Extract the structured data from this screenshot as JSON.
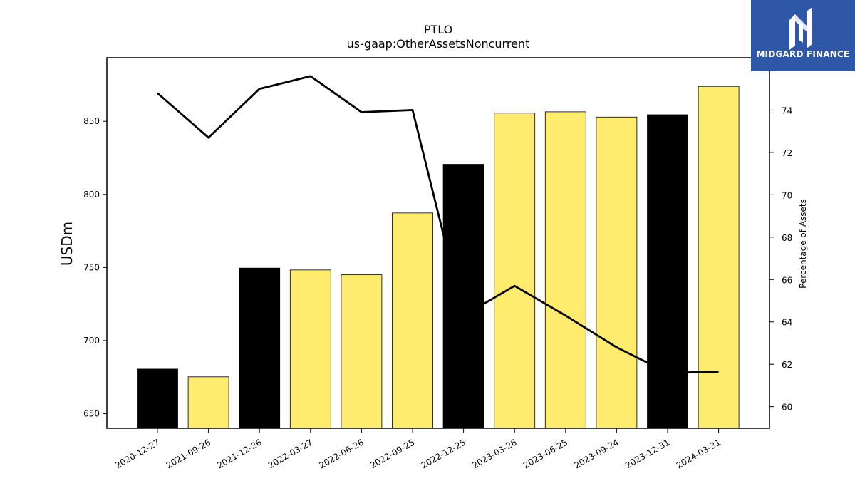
{
  "logo": {
    "text": "MIDGARD FINANCE",
    "icon": "midgard-logo-icon",
    "bg_color": "#2f57a8"
  },
  "chart_data": {
    "type": "bar",
    "title": "PTLO",
    "subtitle": "us-gaap:OtherAssetsNoncurrent",
    "ylabel": "USDm",
    "y2label": "Percentage of Assets",
    "categories": [
      "2020-12-27",
      "2021-09-26",
      "2021-12-26",
      "2022-03-27",
      "2022-06-26",
      "2022-09-25",
      "2022-12-25",
      "2023-03-26",
      "2023-06-25",
      "2023-09-24",
      "2023-12-31",
      "2024-03-31"
    ],
    "series": [
      {
        "type": "bar",
        "values": [
          680.5,
          675.2,
          749.6,
          748.3,
          745.0,
          787.3,
          820.6,
          855.6,
          856.5,
          852.9,
          854.5,
          873.9
        ],
        "colors": [
          "#000000",
          "#ffec6e",
          "#000000",
          "#ffec6e",
          "#ffec6e",
          "#ffec6e",
          "#000000",
          "#ffec6e",
          "#ffec6e",
          "#ffec6e",
          "#000000",
          "#ffec6e"
        ]
      },
      {
        "type": "line",
        "axis": "right",
        "values": [
          74.8,
          72.7,
          75.0,
          75.6,
          73.9,
          74.0,
          64.3,
          65.7,
          64.3,
          62.8,
          61.6,
          61.65
        ],
        "color": "#000000"
      }
    ],
    "ylim": [
      640,
      893.5
    ],
    "y2lim": [
      58.98,
      76.47
    ],
    "yticks": [
      650,
      700,
      750,
      800,
      850
    ],
    "y2ticks": [
      60,
      62,
      64,
      66,
      68,
      70,
      72,
      74
    ],
    "grid": false,
    "legend": "none"
  }
}
